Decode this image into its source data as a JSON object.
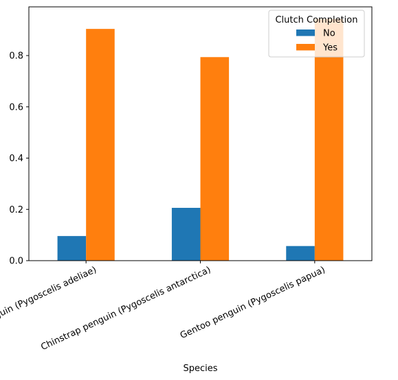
{
  "chart_data": {
    "type": "bar",
    "title": "",
    "xlabel": "Species",
    "ylabel": "",
    "categories": [
      "Adelie Penguin (Pygoscelis adeliae)",
      "Chinstrap penguin (Pygoscelis antarctica)",
      "Gentoo penguin (Pygoscelis papua)"
    ],
    "series": [
      {
        "name": "No",
        "values": [
          0.096,
          0.206,
          0.057
        ],
        "color": "#1f77b4"
      },
      {
        "name": "Yes",
        "values": [
          0.904,
          0.794,
          0.943
        ],
        "color": "#ff7f0e"
      }
    ],
    "ylim": [
      0,
      0.99
    ],
    "yticks": [
      0.0,
      0.2,
      0.4,
      0.6,
      0.8
    ],
    "ytick_labels": [
      "0.0",
      "0.2",
      "0.4",
      "0.6",
      "0.8"
    ],
    "legend": {
      "title": "Clutch Completion",
      "placement": "top-right"
    },
    "grid": false,
    "xtick_rotation": 25
  }
}
